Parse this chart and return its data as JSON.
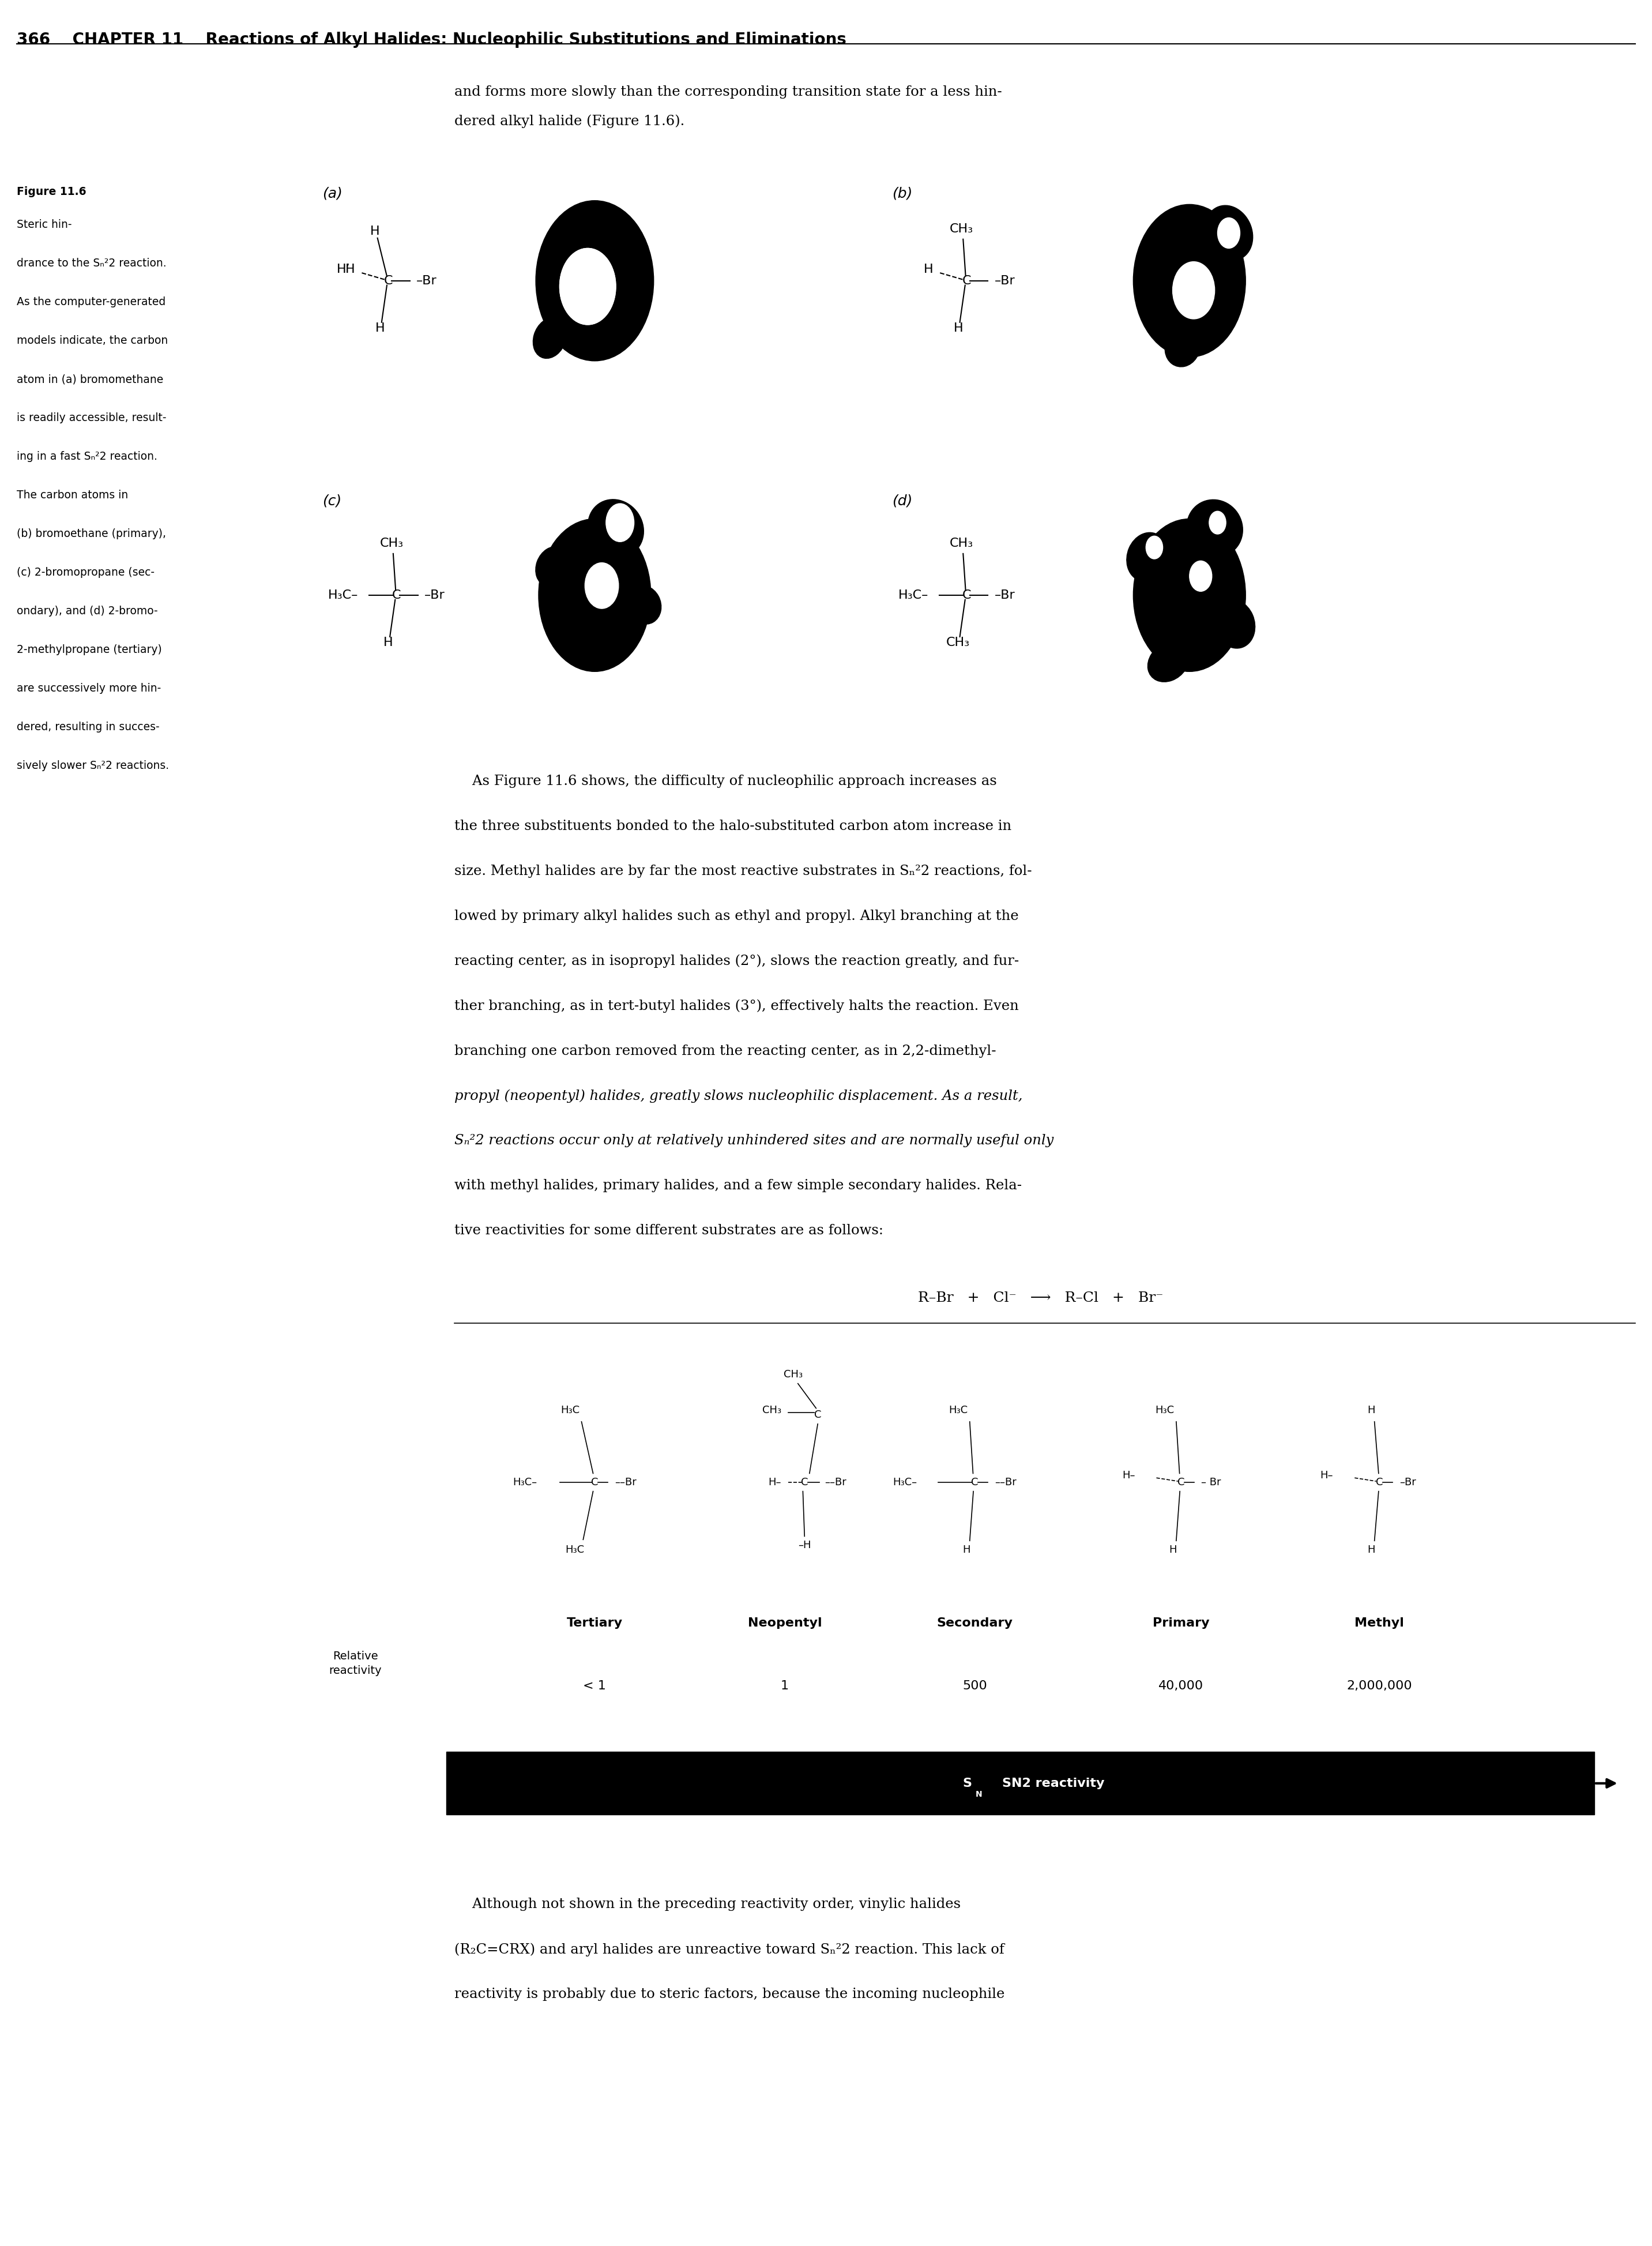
{
  "page_width": 28.65,
  "page_height": 38.94,
  "bg_color": "#ffffff",
  "header_text": "366    CHAPTER 11    Reactions of Alkyl Halides: Nucleophilic Substitutions and Eliminations",
  "intro_line1": "and forms more slowly than the corresponding transition state for a less hin-",
  "intro_line2": "dered alkyl halide (Figure 11.6).",
  "cap_lines": [
    [
      "Figure 11.6 ",
      true
    ],
    [
      "Steric hin-",
      false
    ],
    [
      "drance to the S",
      false
    ],
    [
      "As the computer-generated",
      false
    ],
    [
      "models indicate, the carbon",
      false
    ],
    [
      "atom in (a) bromomethane",
      false
    ],
    [
      "is readily accessible, result-",
      false
    ],
    [
      "ing in a fast S",
      false
    ],
    [
      "The carbon atoms in",
      false
    ],
    [
      "(b) bromoethane (primary),",
      false
    ],
    [
      "(c) 2-bromopropane (sec-",
      false
    ],
    [
      "ondary), and (d) 2-bromo-",
      false
    ],
    [
      "2-methylpropane (tertiary)",
      false
    ],
    [
      "are successively more hin-",
      false
    ],
    [
      "dered, resulting in succes-",
      false
    ],
    [
      "sively slower S",
      false
    ]
  ],
  "body_lines": [
    [
      "    As Figure 11.6 shows, the difficulty of nucleophilic approach increases as",
      false
    ],
    [
      "the three substituents bonded to the halo-substituted carbon atom increase in",
      false
    ],
    [
      "size. Methyl halides are by far the most reactive substrates in S",
      false
    ],
    [
      "lowed by primary alkyl halides such as ethyl and propyl. Alkyl branching at the",
      false
    ],
    [
      "reacting center, as in isopropyl halides (2°), slows the reaction greatly, and fur-",
      false
    ],
    [
      "ther branching, as in ",
      false
    ],
    [
      "propyl (",
      false
    ],
    [
      "S",
      false
    ],
    [
      "with methyl halides, primary halides, and a few simple secondary halides. Rela-",
      false
    ],
    [
      "tive reactivities for some different substrates are as follows:",
      false
    ]
  ],
  "reaction_eq": "R–Br   +   Cl⁻   ⟶   R–Cl   +   Br⁻",
  "col_labels": [
    "Tertiary",
    "Neopentyl",
    "Secondary",
    "Primary",
    "Methyl"
  ],
  "col_reactivities": [
    "< 1",
    "1",
    "500",
    "40,000",
    "2,000,000"
  ],
  "sn2_bar_label": "SN2 reactivity",
  "footer_line1": "    Although not shown in the preceding reactivity order, vinylic halides",
  "footer_line2": "(R₂C=CRX) and aryl halides are unreactive toward S",
  "footer_line3": "reactivity is probably due to steric factors, because the incoming nucleophile"
}
